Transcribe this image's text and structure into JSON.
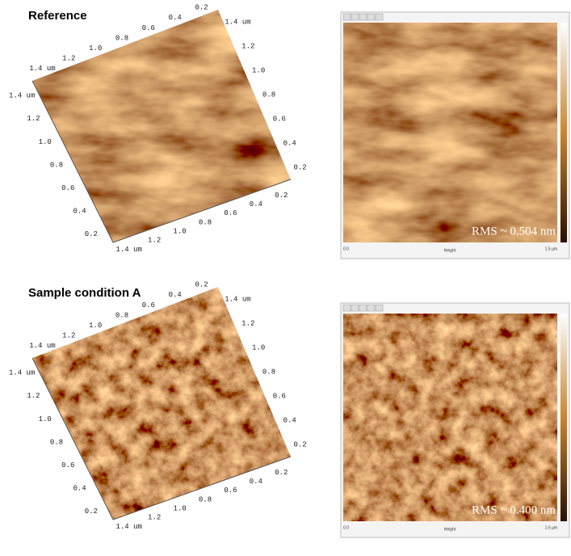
{
  "panels": [
    {
      "title": "Reference",
      "surface_labels": {
        "back": [
          "0.2",
          "0.4",
          "0.6",
          "0.8",
          "1.0",
          "1.2",
          "1.4 um"
        ],
        "right": [
          "1.4 um",
          "1.2",
          "1.0",
          "0.8",
          "0.6",
          "0.4",
          "0.2"
        ],
        "left": [
          "1.4 um",
          "1.2",
          "1.0",
          "0.8",
          "0.6",
          "0.4",
          "0.2"
        ],
        "front": [
          "1.4 um",
          "1.2",
          "1.0",
          "0.8",
          "0.6",
          "0.4",
          "0.2"
        ]
      },
      "image": {
        "rms": "RMS ~ 0.504 nm",
        "x_start": "0.0",
        "x_label": "Height",
        "x_end": "1.5 µm"
      }
    },
    {
      "title": "Sample condition A",
      "surface_labels": {
        "back": [
          "0.2",
          "0.4",
          "0.6",
          "0.8",
          "1.0",
          "1.2",
          "1.4 um"
        ],
        "right": [
          "1.4 um",
          "1.2",
          "1.0",
          "0.8",
          "0.6",
          "0.4",
          "0.2"
        ],
        "left": [
          "1.4 um",
          "1.2",
          "1.0",
          "0.8",
          "0.6",
          "0.4",
          "0.2"
        ],
        "front": [
          "1.4 um",
          "1.2",
          "1.0",
          "0.8",
          "0.6",
          "0.4",
          "0.2"
        ]
      },
      "image": {
        "rms": "RMS ~ 0.400 nm",
        "x_start": "0.0",
        "x_label": "Height",
        "x_end": "1.5 µm"
      }
    }
  ]
}
